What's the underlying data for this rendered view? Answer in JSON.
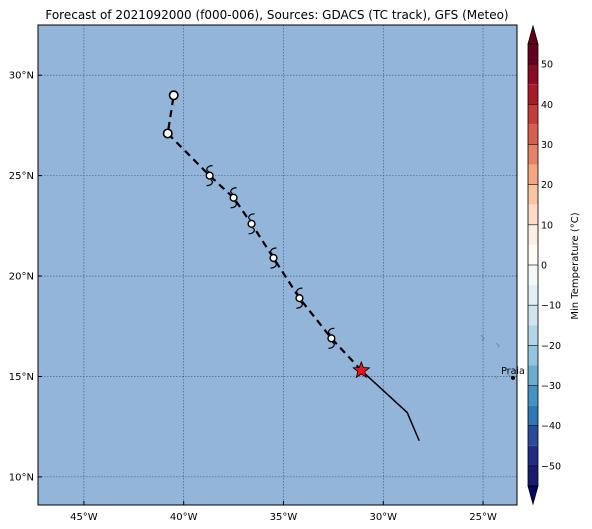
{
  "title": "Forecast of 2021092000 (f000-006), Sources: GDACS (TC track), GFS (Meteo)",
  "colors": {
    "ocean": "#92b5d9",
    "frame": "#000000",
    "grid": "#3a4f7a",
    "track": "#000000",
    "current_marker": "#e8161b"
  },
  "map": {
    "lon_range": [
      -47.3,
      -23.3
    ],
    "lat_range": [
      8.6,
      32.5
    ],
    "lon_ticks": [
      {
        "value": -45,
        "label": "45°W"
      },
      {
        "value": -40,
        "label": "40°W"
      },
      {
        "value": -35,
        "label": "35°W"
      },
      {
        "value": -30,
        "label": "30°W"
      },
      {
        "value": -25,
        "label": "25°W"
      }
    ],
    "lat_ticks": [
      {
        "value": 30,
        "label": "30°N"
      },
      {
        "value": 25,
        "label": "25°N"
      },
      {
        "value": 20,
        "label": "20°N"
      },
      {
        "value": 15,
        "label": "15°N"
      },
      {
        "value": 10,
        "label": "10°N"
      }
    ],
    "grid": true
  },
  "track": {
    "past": [
      [
        -28.2,
        11.8
      ],
      [
        -28.8,
        13.2
      ],
      [
        -30.0,
        14.3
      ],
      [
        -31.1,
        15.3
      ]
    ],
    "forecast": [
      [
        -31.1,
        15.3
      ],
      [
        -32.6,
        16.9
      ],
      [
        -34.2,
        18.9
      ],
      [
        -35.5,
        20.9
      ],
      [
        -36.6,
        22.6
      ],
      [
        -37.5,
        23.9
      ],
      [
        -38.7,
        25.0
      ],
      [
        -40.8,
        27.1
      ],
      [
        -40.5,
        29.0
      ]
    ],
    "current": [
      -31.1,
      15.3
    ],
    "points": [
      {
        "lon": -32.6,
        "lat": 16.9,
        "symbol": "hurricane"
      },
      {
        "lon": -34.2,
        "lat": 18.9,
        "symbol": "hurricane"
      },
      {
        "lon": -35.5,
        "lat": 20.9,
        "symbol": "hurricane"
      },
      {
        "lon": -36.6,
        "lat": 22.6,
        "symbol": "hurricane"
      },
      {
        "lon": -37.5,
        "lat": 23.9,
        "symbol": "hurricane"
      },
      {
        "lon": -38.7,
        "lat": 25.0,
        "symbol": "hurricane"
      },
      {
        "lon": -40.8,
        "lat": 27.1,
        "symbol": "low"
      },
      {
        "lon": -40.5,
        "lat": 29.0,
        "symbol": "low"
      }
    ]
  },
  "places": [
    {
      "name": "Praia",
      "lon": -23.5,
      "lat": 14.93
    }
  ],
  "islands": [
    [
      [
        -24.35,
        16.65
      ],
      [
        -24.2,
        16.55
      ],
      [
        -24.25,
        16.45
      ]
    ],
    [
      [
        -25.1,
        17.05
      ],
      [
        -24.95,
        16.9
      ],
      [
        -25.05,
        16.8
      ]
    ],
    [
      [
        -24.4,
        15.0
      ],
      [
        -24.3,
        14.9
      ]
    ],
    [
      [
        -23.75,
        15.1
      ],
      [
        -23.6,
        15.0
      ],
      [
        -23.5,
        14.95
      ]
    ]
  ],
  "colorbar": {
    "label": "Min Temperature (°C)",
    "min": -55,
    "max": 55,
    "ticks": [
      50,
      40,
      30,
      20,
      10,
      0,
      -10,
      -20,
      -30,
      -40,
      -50
    ],
    "bands": [
      {
        "from": 50,
        "to": 55,
        "color": "#67001f"
      },
      {
        "from": 45,
        "to": 50,
        "color": "#8c0a24"
      },
      {
        "from": 40,
        "to": 45,
        "color": "#a91b2b"
      },
      {
        "from": 35,
        "to": 40,
        "color": "#c43c3c"
      },
      {
        "from": 30,
        "to": 35,
        "color": "#d6604d"
      },
      {
        "from": 25,
        "to": 30,
        "color": "#e58267"
      },
      {
        "from": 20,
        "to": 25,
        "color": "#f4a582"
      },
      {
        "from": 15,
        "to": 20,
        "color": "#f9c4a2"
      },
      {
        "from": 10,
        "to": 15,
        "color": "#fddbc7"
      },
      {
        "from": 5,
        "to": 10,
        "color": "#fbeee4"
      },
      {
        "from": 0,
        "to": 5,
        "color": "#fdf9f3"
      },
      {
        "from": -5,
        "to": 0,
        "color": "#f4f8fb"
      },
      {
        "from": -10,
        "to": -5,
        "color": "#e3eff6"
      },
      {
        "from": -15,
        "to": -10,
        "color": "#d1e5f0"
      },
      {
        "from": -20,
        "to": -15,
        "color": "#b3d5e8"
      },
      {
        "from": -25,
        "to": -20,
        "color": "#92c5de"
      },
      {
        "from": -30,
        "to": -25,
        "color": "#6aaed2"
      },
      {
        "from": -35,
        "to": -30,
        "color": "#4393c3"
      },
      {
        "from": -40,
        "to": -35,
        "color": "#2f77b5"
      },
      {
        "from": -45,
        "to": -40,
        "color": "#2a4b9b"
      },
      {
        "from": -50,
        "to": -45,
        "color": "#242d86"
      },
      {
        "from": -55,
        "to": -50,
        "color": "#1a1a6e"
      }
    ],
    "over_color": "#67001f",
    "under_color": "#050562"
  }
}
